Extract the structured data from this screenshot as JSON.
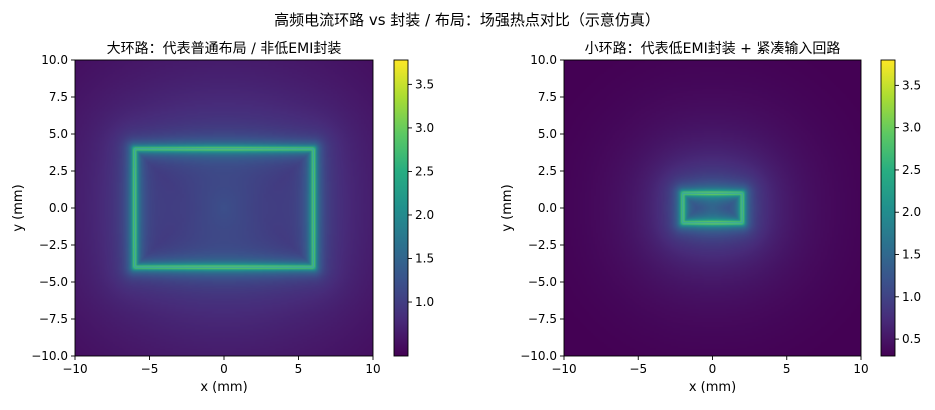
{
  "figure": {
    "suptitle": "高频电流环路 vs 封装 / 布局：场强热点对比（示意仿真）"
  },
  "chart_data": [
    {
      "type": "heatmap",
      "title": "大环路：代表普通布局 / 非低EMI封装",
      "xlabel": "x (mm)",
      "ylabel": "y (mm)",
      "xlim": [
        -10,
        10
      ],
      "ylim": [
        -10,
        10
      ],
      "xticks": [
        -10,
        -5,
        0,
        5,
        10
      ],
      "yticks": [
        -10.0,
        -7.5,
        -5.0,
        -2.5,
        0.0,
        2.5,
        5.0,
        7.5,
        10.0
      ],
      "colormap": "viridis",
      "loop_rect": {
        "x": [
          -6,
          6
        ],
        "y": [
          -4,
          4
        ]
      },
      "clim": [
        0.38,
        3.78
      ],
      "colorbar_ticks": [
        1.0,
        1.5,
        2.0,
        2.5,
        3.0,
        3.5
      ],
      "grid": false
    },
    {
      "type": "heatmap",
      "title": "小环路：代表低EMI封装 + 紧凑输入回路",
      "xlabel": "x (mm)",
      "ylabel": "y (mm)",
      "xlim": [
        -10,
        10
      ],
      "ylim": [
        -10,
        10
      ],
      "xticks": [
        -10,
        -5,
        0,
        5,
        10
      ],
      "yticks": [
        -10.0,
        -7.5,
        -5.0,
        -2.5,
        0.0,
        2.5,
        5.0,
        7.5,
        10.0
      ],
      "colormap": "viridis",
      "loop_rect": {
        "x": [
          -2,
          2
        ],
        "y": [
          -1,
          1
        ]
      },
      "clim": [
        0.3,
        3.8
      ],
      "colorbar_ticks": [
        0.5,
        1.0,
        1.5,
        2.0,
        2.5,
        3.0,
        3.5
      ],
      "grid": false
    }
  ]
}
